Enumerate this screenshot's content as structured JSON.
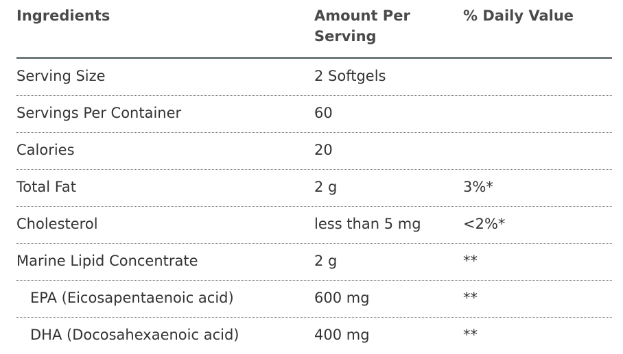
{
  "table": {
    "header": [
      "Ingredients",
      "Amount Per Serving",
      "% Daily Value"
    ],
    "rows": [
      {
        "cells": [
          "Serving Size",
          "2 Softgels"
        ]
      },
      {
        "cells": [
          "Servings Per Container",
          60
        ]
      },
      {
        "cells": [
          "Calories",
          20
        ]
      },
      {
        "cells": [
          "Total Fat",
          "2 g",
          "3%*"
        ]
      },
      {
        "cells": [
          "Cholesterol",
          "less than 5 mg",
          "<2%*"
        ]
      },
      {
        "cells": [
          "Marine Lipid Concentrate",
          "2 g",
          "**"
        ],
        "sub_rows": [
          {
            "cells": [
              "EPA (Eicosapentaenoic acid)",
              "600 mg",
              "**"
            ]
          },
          {
            "cells": [
              "DHA (Docosahexaenoic acid)",
              "400 mg",
              "**"
            ]
          }
        ]
      }
    ]
  }
}
